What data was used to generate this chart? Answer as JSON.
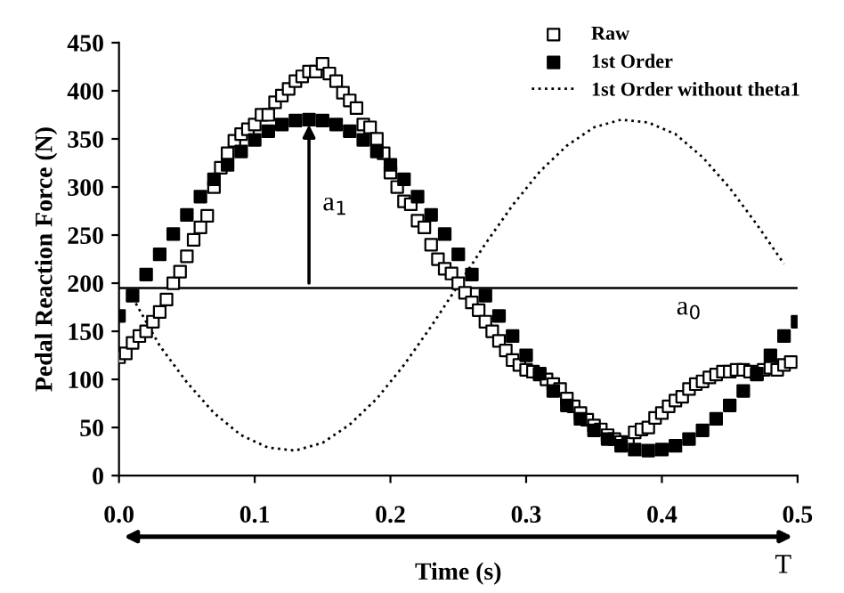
{
  "chart_data": {
    "type": "line",
    "xlabel": "Time (s)",
    "ylabel": "Pedal Reaction Force (N)",
    "xlim": [
      0,
      0.5
    ],
    "xticks": [
      {
        "value": 0,
        "label": "0.0"
      },
      0.1,
      0.2,
      0.3,
      0.4,
      0.5
    ],
    "ylim": [
      0,
      450
    ],
    "yticks": [
      0,
      50,
      100,
      150,
      200,
      250,
      300,
      350,
      400,
      450
    ],
    "grid": false,
    "legend": "top right",
    "series": [
      {
        "name": "Raw",
        "type": "scatter",
        "marker": "square",
        "color": "#ffffff",
        "x": [
          0,
          0.005,
          0.01,
          0.015,
          0.02,
          0.025,
          0.03,
          0.035,
          0.04,
          0.045,
          0.05,
          0.055,
          0.06,
          0.065,
          0.07,
          0.075,
          0.08,
          0.085,
          0.09,
          0.095,
          0.1,
          0.105,
          0.11,
          0.115,
          0.12,
          0.125,
          0.13,
          0.135,
          0.14,
          0.145,
          0.15,
          0.155,
          0.16,
          0.165,
          0.17,
          0.175,
          0.18,
          0.185,
          0.19,
          0.195,
          0.2,
          0.205,
          0.21,
          0.215,
          0.22,
          0.225,
          0.23,
          0.235,
          0.24,
          0.245,
          0.25,
          0.255,
          0.26,
          0.265,
          0.27,
          0.275,
          0.28,
          0.285,
          0.29,
          0.295,
          0.3,
          0.305,
          0.31,
          0.315,
          0.32,
          0.325,
          0.33,
          0.335,
          0.34,
          0.345,
          0.35,
          0.355,
          0.36,
          0.365,
          0.37,
          0.375,
          0.38,
          0.385,
          0.39,
          0.395,
          0.4,
          0.405,
          0.41,
          0.415,
          0.42,
          0.425,
          0.43,
          0.435,
          0.44,
          0.445,
          0.45,
          0.455,
          0.46,
          0.465,
          0.47,
          0.475,
          0.48,
          0.485,
          0.49,
          0.495
        ],
        "values": [
          123,
          127,
          138,
          145,
          150,
          160,
          170,
          183,
          200,
          212,
          228,
          245,
          258,
          270,
          300,
          320,
          335,
          348,
          355,
          360,
          365,
          375,
          375,
          388,
          395,
          402,
          410,
          415,
          420,
          420,
          428,
          418,
          410,
          398,
          390,
          382,
          365,
          362,
          350,
          335,
          315,
          300,
          285,
          282,
          265,
          258,
          240,
          225,
          215,
          210,
          200,
          190,
          180,
          172,
          160,
          150,
          140,
          130,
          120,
          115,
          110,
          108,
          105,
          100,
          95,
          90,
          80,
          72,
          65,
          58,
          52,
          48,
          42,
          38,
          35,
          33,
          45,
          48,
          50,
          60,
          65,
          72,
          78,
          82,
          90,
          95,
          98,
          102,
          105,
          108,
          108,
          110,
          110,
          108,
          105,
          110,
          112,
          110,
          115,
          118
        ]
      },
      {
        "name": "1st Order",
        "type": "scatter",
        "marker": "square",
        "color": "#000000",
        "x": [
          0,
          0.01,
          0.02,
          0.03,
          0.04,
          0.05,
          0.06,
          0.07,
          0.08,
          0.09,
          0.1,
          0.11,
          0.12,
          0.13,
          0.14,
          0.15,
          0.16,
          0.17,
          0.18,
          0.19,
          0.2,
          0.21,
          0.22,
          0.23,
          0.24,
          0.25,
          0.26,
          0.27,
          0.28,
          0.29,
          0.3,
          0.31,
          0.32,
          0.33,
          0.34,
          0.35,
          0.36,
          0.37,
          0.38,
          0.39,
          0.4,
          0.41,
          0.42,
          0.43,
          0.44,
          0.45,
          0.46,
          0.47,
          0.48,
          0.49,
          0.5
        ],
        "values": [
          166,
          187,
          209,
          230,
          251,
          271,
          290,
          308,
          323,
          337,
          349,
          358,
          365,
          369,
          370,
          369,
          365,
          358,
          349,
          337,
          323,
          308,
          290,
          271,
          251,
          230,
          209,
          187,
          166,
          145,
          125,
          106,
          88,
          73,
          59,
          47,
          38,
          31,
          27,
          26,
          27,
          31,
          38,
          47,
          59,
          73,
          88,
          106,
          125,
          145,
          160
        ]
      },
      {
        "name": "1st Order without theta1",
        "line_style": "dotted",
        "color": "#000000",
        "x": [
          0.01,
          0.03,
          0.05,
          0.07,
          0.09,
          0.11,
          0.13,
          0.15,
          0.17,
          0.19,
          0.21,
          0.23,
          0.25,
          0.27,
          0.29,
          0.31,
          0.33,
          0.35,
          0.37,
          0.39,
          0.41,
          0.43,
          0.45,
          0.47,
          0.49
        ],
        "values": [
          185,
          135,
          97,
          65,
          42,
          29,
          26,
          34,
          53,
          80,
          115,
          155,
          198,
          241,
          281,
          316,
          343,
          362,
          370,
          367,
          355,
          331,
          299,
          261,
          220
        ]
      }
    ],
    "ref_lines": [
      {
        "axis": "y",
        "value": 195,
        "label": "a$_{0}$",
        "color": "#000000",
        "line_style": "solid"
      }
    ],
    "annotations": [
      {
        "text": "a$_{1}$",
        "x": 0.14,
        "y": 370
      },
      "T"
    ]
  }
}
